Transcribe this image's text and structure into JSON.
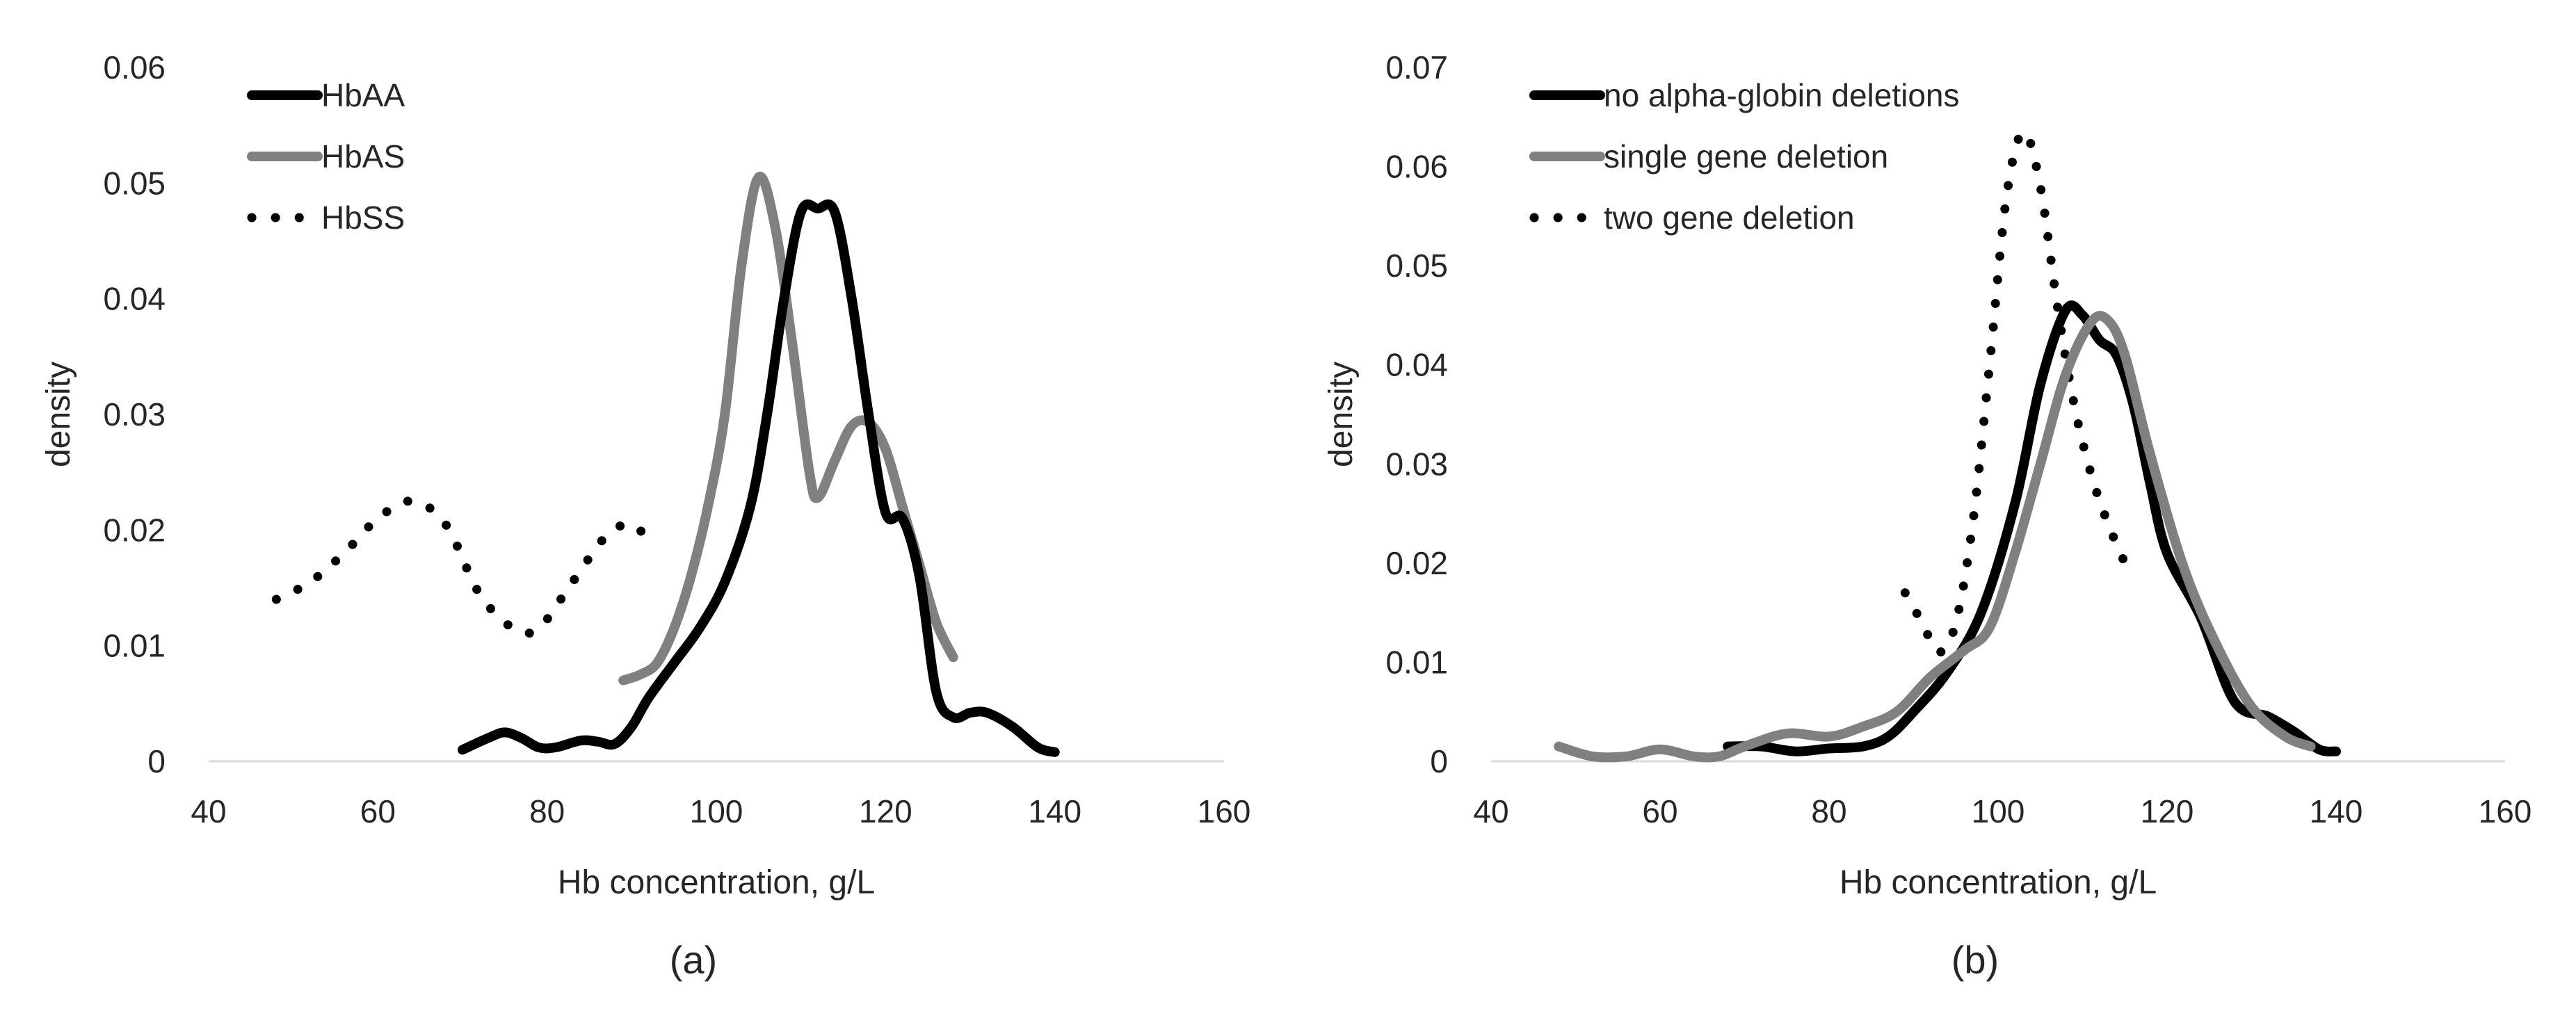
{
  "chart_data": [
    {
      "id": "a",
      "type": "line",
      "panel_label": "(a)",
      "xlabel": "Hb concentration, g/L",
      "ylabel": "density",
      "xlim": [
        40,
        160
      ],
      "ylim": [
        0,
        0.06
      ],
      "x_ticks": [
        40,
        60,
        80,
        100,
        120,
        140,
        160
      ],
      "y_ticks": [
        0,
        0.01,
        0.02,
        0.03,
        0.04,
        0.05,
        0.06
      ],
      "x_tick_labels": [
        "40",
        "60",
        "80",
        "100",
        "120",
        "140",
        "160"
      ],
      "y_tick_labels": [
        "0",
        "0.01",
        "0.02",
        "0.03",
        "0.04",
        "0.05",
        "0.06"
      ],
      "legend_position": "top-left",
      "series": [
        {
          "name": "HbAA",
          "style": "solid",
          "color": "#000000",
          "points": [
            [
              70,
              0.001
            ],
            [
              73,
              0.002
            ],
            [
              75,
              0.0025
            ],
            [
              77,
              0.002
            ],
            [
              79,
              0.0012
            ],
            [
              81,
              0.0012
            ],
            [
              84,
              0.0018
            ],
            [
              86,
              0.0017
            ],
            [
              88,
              0.0015
            ],
            [
              90,
              0.003
            ],
            [
              92,
              0.0055
            ],
            [
              95,
              0.0085
            ],
            [
              98,
              0.0115
            ],
            [
              101,
              0.0155
            ],
            [
              104,
              0.022
            ],
            [
              106,
              0.03
            ],
            [
              108,
              0.04
            ],
            [
              110,
              0.0475
            ],
            [
              112,
              0.0478
            ],
            [
              114,
              0.0475
            ],
            [
              116,
              0.04
            ],
            [
              118,
              0.03
            ],
            [
              120,
              0.0215
            ],
            [
              122,
              0.021
            ],
            [
              124,
              0.016
            ],
            [
              126,
              0.006
            ],
            [
              128,
              0.0038
            ],
            [
              130,
              0.0042
            ],
            [
              132,
              0.0042
            ],
            [
              135,
              0.003
            ],
            [
              138,
              0.0012
            ],
            [
              140,
              0.0008
            ]
          ]
        },
        {
          "name": "HbAS",
          "style": "solid",
          "color": "#808080",
          "points": [
            [
              89,
              0.007
            ],
            [
              91,
              0.0075
            ],
            [
              93,
              0.0085
            ],
            [
              95,
              0.0115
            ],
            [
              97,
              0.016
            ],
            [
              99,
              0.022
            ],
            [
              101,
              0.03
            ],
            [
              103,
              0.043
            ],
            [
              105,
              0.0505
            ],
            [
              107,
              0.046
            ],
            [
              109,
              0.036
            ],
            [
              111,
              0.025
            ],
            [
              112,
              0.0228
            ],
            [
              114,
              0.026
            ],
            [
              116,
              0.029
            ],
            [
              118,
              0.0293
            ],
            [
              120,
              0.027
            ],
            [
              122,
              0.022
            ],
            [
              124,
              0.017
            ],
            [
              126,
              0.012
            ],
            [
              128,
              0.009
            ]
          ]
        },
        {
          "name": "HbSS",
          "style": "dotted",
          "color": "#000000",
          "points": [
            [
              48,
              0.014
            ],
            [
              52,
              0.0155
            ],
            [
              56,
              0.018
            ],
            [
              60,
              0.021
            ],
            [
              64,
              0.0225
            ],
            [
              68,
              0.0205
            ],
            [
              72,
              0.0145
            ],
            [
              76,
              0.0115
            ],
            [
              79,
              0.0115
            ],
            [
              83,
              0.0155
            ],
            [
              87,
              0.0195
            ],
            [
              90,
              0.0205
            ],
            [
              92,
              0.019
            ]
          ]
        }
      ]
    },
    {
      "id": "b",
      "type": "line",
      "panel_label": "(b)",
      "xlabel": "Hb concentration, g/L",
      "ylabel": "density",
      "xlim": [
        40,
        160
      ],
      "ylim": [
        0,
        0.07
      ],
      "x_ticks": [
        40,
        60,
        80,
        100,
        120,
        140,
        160
      ],
      "y_ticks": [
        0,
        0.01,
        0.02,
        0.03,
        0.04,
        0.05,
        0.06,
        0.07
      ],
      "x_tick_labels": [
        "40",
        "60",
        "80",
        "100",
        "120",
        "140",
        "160"
      ],
      "y_tick_labels": [
        "0",
        "0.01",
        "0.02",
        "0.03",
        "0.04",
        "0.05",
        "0.06",
        "0.07"
      ],
      "legend_position": "top-left",
      "series": [
        {
          "name": "no alpha-globin deletions",
          "style": "solid",
          "color": "#000000",
          "points": [
            [
              68,
              0.0015
            ],
            [
              72,
              0.0015
            ],
            [
              76,
              0.001
            ],
            [
              80,
              0.0013
            ],
            [
              84,
              0.0015
            ],
            [
              87,
              0.0025
            ],
            [
              90,
              0.005
            ],
            [
              94,
              0.009
            ],
            [
              98,
              0.015
            ],
            [
              102,
              0.026
            ],
            [
              105,
              0.038
            ],
            [
              108,
              0.0455
            ],
            [
              110,
              0.045
            ],
            [
              112,
              0.0425
            ],
            [
              114,
              0.041
            ],
            [
              116,
              0.036
            ],
            [
              118,
              0.028
            ],
            [
              120,
              0.021
            ],
            [
              124,
              0.0145
            ],
            [
              128,
              0.006
            ],
            [
              132,
              0.0045
            ],
            [
              135,
              0.003
            ],
            [
              138,
              0.0012
            ],
            [
              140,
              0.001
            ]
          ]
        },
        {
          "name": "single gene deletion",
          "style": "solid",
          "color": "#808080",
          "points": [
            [
              48,
              0.0015
            ],
            [
              52,
              0.0005
            ],
            [
              56,
              0.0005
            ],
            [
              60,
              0.0012
            ],
            [
              64,
              0.0005
            ],
            [
              67,
              0.0005
            ],
            [
              70,
              0.0015
            ],
            [
              75,
              0.0028
            ],
            [
              80,
              0.0025
            ],
            [
              84,
              0.0035
            ],
            [
              88,
              0.005
            ],
            [
              92,
              0.0085
            ],
            [
              96,
              0.0112
            ],
            [
              99,
              0.0135
            ],
            [
              102,
              0.021
            ],
            [
              105,
              0.03
            ],
            [
              108,
              0.039
            ],
            [
              111,
              0.0443
            ],
            [
              113,
              0.0445
            ],
            [
              115,
              0.041
            ],
            [
              118,
              0.031
            ],
            [
              122,
              0.0195
            ],
            [
              126,
              0.0115
            ],
            [
              130,
              0.0055
            ],
            [
              134,
              0.0025
            ],
            [
              137,
              0.0015
            ]
          ]
        },
        {
          "name": "two gene deletion",
          "style": "dotted",
          "color": "#000000",
          "points": [
            [
              89,
              0.017
            ],
            [
              91,
              0.014
            ],
            [
              93,
              0.011
            ],
            [
              95,
              0.014
            ],
            [
              97,
              0.024
            ],
            [
              99,
              0.04
            ],
            [
              101,
              0.057
            ],
            [
              103,
              0.0635
            ],
            [
              105,
              0.058
            ],
            [
              107,
              0.046
            ],
            [
              109,
              0.036
            ],
            [
              111,
              0.029
            ],
            [
              113,
              0.024
            ],
            [
              115,
              0.02
            ]
          ]
        }
      ]
    }
  ]
}
